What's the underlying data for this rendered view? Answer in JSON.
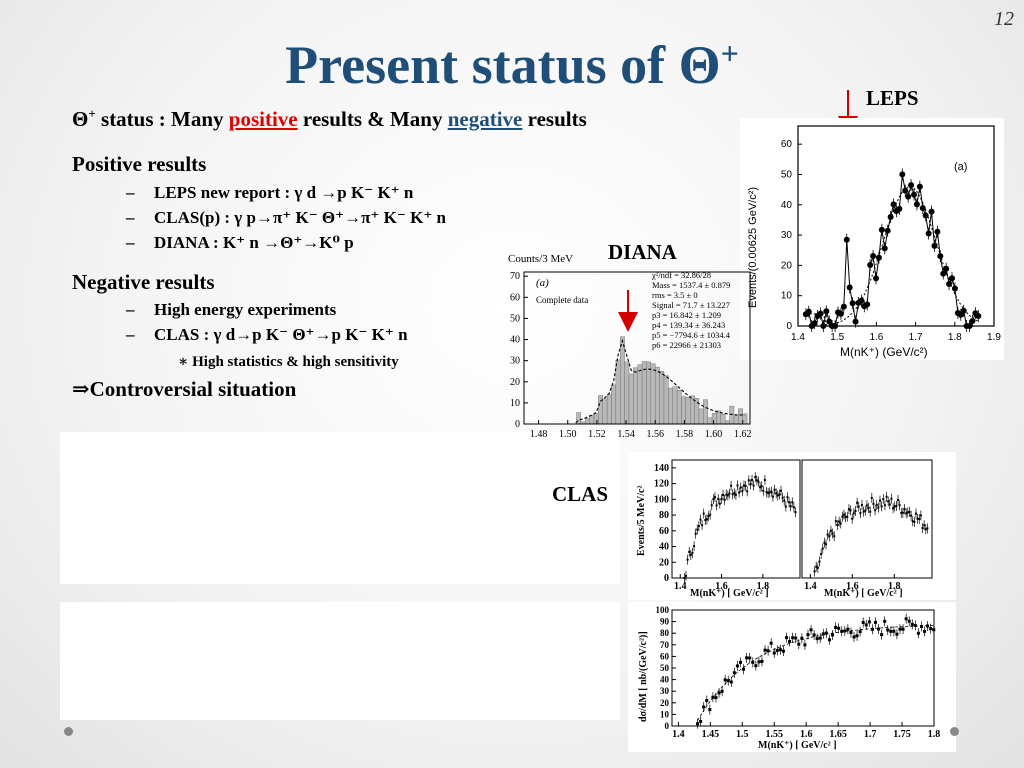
{
  "slide": {
    "number": "12",
    "title_main": "Present status of Θ",
    "title_sup": "+"
  },
  "status_line": {
    "prefix_theta": "Θ",
    "prefix_sup": "+",
    "text1": " status : Many ",
    "positive": "positive",
    "text2": " results & Many ",
    "negative": "negative",
    "text3": " results"
  },
  "positive": {
    "heading": "Positive results",
    "items": [
      "LEPS new report : γ d →p K⁻ K⁺ n",
      "CLAS(p) : γ p→π⁺ K⁻ Θ⁺→π⁺ K⁻ K⁺ n",
      "DIANA : K⁺ n →Θ⁺→K⁰ p"
    ]
  },
  "negative": {
    "heading": "Negative results",
    "items": [
      "High energy experiments",
      "CLAS : γ d→p K⁻ Θ⁺→p K⁻ K⁺ n"
    ],
    "subitem": "High statistics & high sensitivity"
  },
  "bullet_dash": "–",
  "bullet_star": "∗",
  "conclusion": "⇒Controversial situation",
  "labels": {
    "leps": "LEPS",
    "diana": "DIANA",
    "clas": "CLAS"
  },
  "leps_plot": {
    "ylabel": "Events/(0.00625 GeV/c²)",
    "xlabel": "M(nK⁺) (GeV/c²)",
    "panel_tag": "(a)",
    "xticks": [
      "1.4",
      "1.5",
      "1.6",
      "1.7",
      "1.8",
      "1.9"
    ],
    "yticks": [
      "0",
      "10",
      "20",
      "30",
      "40",
      "50",
      "60"
    ]
  },
  "diana_plot": {
    "ylabel": "Counts/3 MeV",
    "panel_tag": "(a)",
    "caption": "Complete data",
    "fit_text": [
      "χ²/ndf = 32.86/28",
      "Mass = 1537.4 ± 0.879",
      "rms = 3.5 ± 0",
      "Signal = 71.7 ± 13.227",
      "p3 = 16.842 ± 1.209",
      "p4 = 139.34 ± 36.243",
      "p5 = −7794.6 ± 1034.4",
      "p6 = 22966 ± 21303"
    ],
    "xticks": [
      "1.48",
      "1.50",
      "1.52",
      "1.54",
      "1.56",
      "1.58",
      "1.60",
      "1.62"
    ],
    "yticks": [
      "0",
      "10",
      "20",
      "30",
      "40",
      "50",
      "60",
      "70"
    ]
  },
  "clas_top": {
    "ylabel": "Events/5 MeV/c²",
    "xlabel": "M(nK⁺) [ GeV/c² ]",
    "xticks": [
      "1.4",
      "1.6",
      "1.8"
    ],
    "yticks": [
      "0",
      "20",
      "40",
      "60",
      "80",
      "100",
      "120",
      "140"
    ]
  },
  "clas_bottom": {
    "ylabel": "dσ/dM [ nb/(GeV/c²)]",
    "xlabel": "M(nK⁺) [ GeV/c² ]",
    "xticks": [
      "1.4",
      "1.45",
      "1.5",
      "1.55",
      "1.6",
      "1.65",
      "1.7",
      "1.75",
      "1.8"
    ],
    "yticks": [
      "0",
      "10",
      "20",
      "30",
      "40",
      "50",
      "60",
      "70",
      "80",
      "90",
      "100"
    ]
  },
  "colors": {
    "title": "#1f4e79",
    "positive": "#e00000",
    "negative": "#1f4e79",
    "arrow_red": "#d40000",
    "arrow_blue": "#1f4e79"
  }
}
